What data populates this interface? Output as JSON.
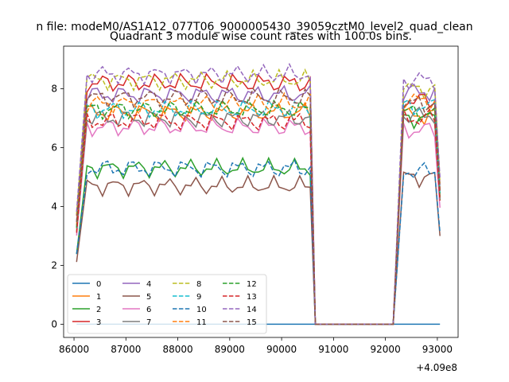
{
  "chart_data": {
    "type": "line",
    "suptitle": "n file: modeM0/AS1A12_077T06_9000005430_39059cztM0_level2_quad_clean",
    "title": "Quadrant 3 module wise count rates with 100.0s bins.",
    "xlabel": "",
    "ylabel": "",
    "x_offset_label": "+4.09e8",
    "xlim": [
      85800,
      93400
    ],
    "ylim": [
      -0.45,
      9.45
    ],
    "x_ticks": [
      86000,
      87000,
      88000,
      89000,
      90000,
      91000,
      92000,
      93000
    ],
    "x_tick_labels": [
      "86000",
      "87000",
      "88000",
      "89000",
      "90000",
      "91000",
      "92000",
      "93000"
    ],
    "y_ticks": [
      0,
      2,
      4,
      6,
      8
    ],
    "y_tick_labels": [
      "0",
      "2",
      "4",
      "6",
      "8"
    ],
    "legend": {
      "location": "lower-left",
      "columns": 4,
      "entries": [
        "0",
        "1",
        "2",
        "3",
        "4",
        "5",
        "6",
        "7",
        "8",
        "9",
        "10",
        "11",
        "12",
        "13",
        "14",
        "15"
      ]
    },
    "segments": [
      {
        "x_start": 86050,
        "x_end": 90650,
        "ramp_end": 86250
      },
      {
        "x_start": 92150,
        "x_end": 93050,
        "ramp_end": 92350
      }
    ],
    "series": [
      {
        "name": "0",
        "color": "#1f77b4",
        "dash": "solid",
        "constant": 0
      },
      {
        "name": "1",
        "color": "#ff7f0e",
        "dash": "solid",
        "level": 7.2,
        "segment2_level": 7.1
      },
      {
        "name": "2",
        "color": "#2ca02c",
        "dash": "solid",
        "level": 5.3,
        "segment2_level": 7.0
      },
      {
        "name": "3",
        "color": "#d62728",
        "dash": "solid",
        "level": 8.2,
        "segment2_level": 7.6
      },
      {
        "name": "4",
        "color": "#9467bd",
        "dash": "solid",
        "level": 7.8,
        "segment2_level": 7.9
      },
      {
        "name": "5",
        "color": "#8c564b",
        "dash": "solid",
        "level": 4.7,
        "segment2_level": 5.0
      },
      {
        "name": "6",
        "color": "#e377c2",
        "dash": "solid",
        "level": 6.7,
        "segment2_level": 6.6
      },
      {
        "name": "7",
        "color": "#7f7f7f",
        "dash": "solid",
        "level": 7.0,
        "segment2_level": 7.1
      },
      {
        "name": "8",
        "color": "#bcbd22",
        "dash": "dashed",
        "level": 8.3,
        "segment2_level": 8.0
      },
      {
        "name": "9",
        "color": "#17becf",
        "dash": "dashed",
        "level": 7.3,
        "segment2_level": 7.4
      },
      {
        "name": "10",
        "color": "#1f77b4",
        "dash": "dashed",
        "level": 5.3,
        "segment2_level": 5.2
      },
      {
        "name": "11",
        "color": "#ff7f0e",
        "dash": "dashed",
        "level": 7.5,
        "segment2_level": 7.6
      },
      {
        "name": "12",
        "color": "#2ca02c",
        "dash": "dashed",
        "level": 7.3,
        "segment2_level": 7.2
      },
      {
        "name": "13",
        "color": "#d62728",
        "dash": "dashed",
        "level": 6.9,
        "segment2_level": 7.0
      },
      {
        "name": "14",
        "color": "#9467bd",
        "dash": "dashed",
        "level": 8.5,
        "segment2_level": 8.3
      },
      {
        "name": "15",
        "color": "#8c564b",
        "dash": "dashed",
        "level": 7.7,
        "segment2_level": 7.5
      }
    ]
  }
}
